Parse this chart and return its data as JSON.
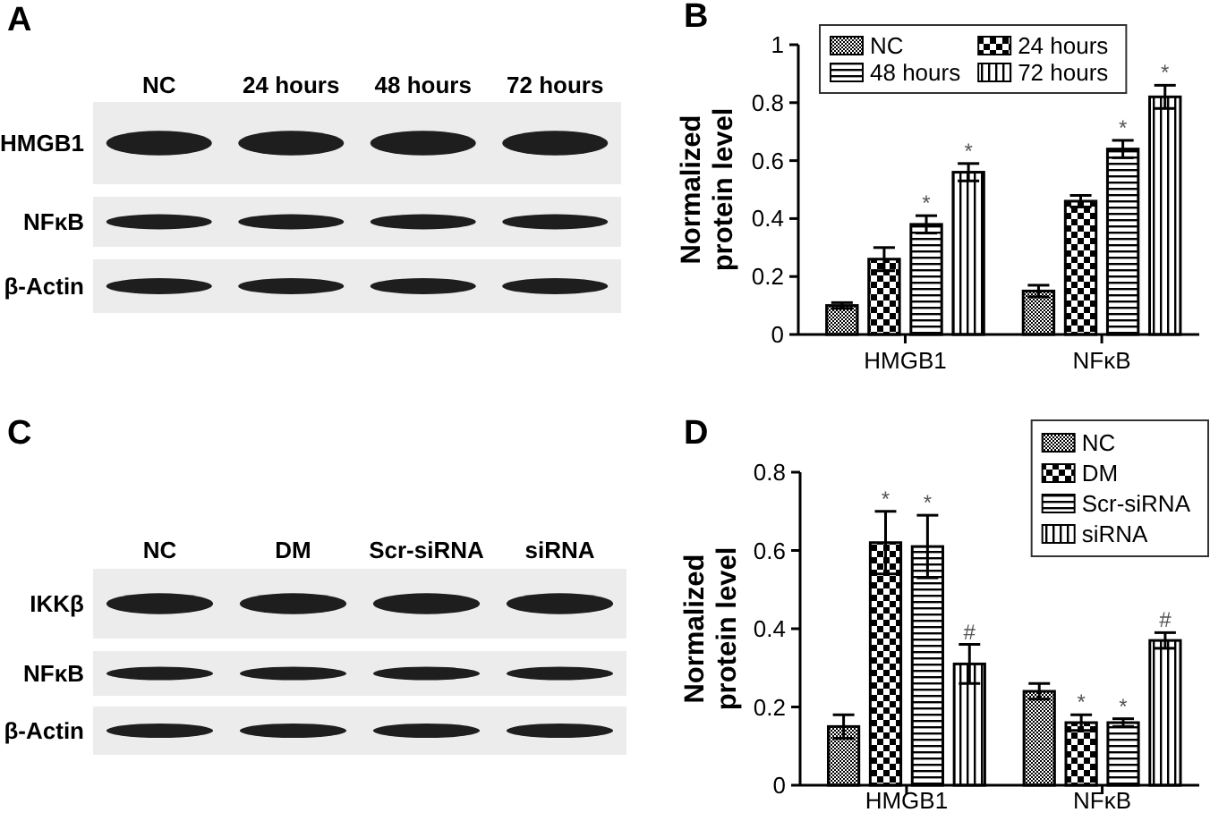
{
  "chart_data": [
    {
      "type": "other",
      "title": "A",
      "categories": [
        "NC",
        "24 hours",
        "48 hours",
        "72 hours"
      ],
      "y_categories": [
        "HMGB1",
        "NFκB",
        "β-Actin"
      ]
    },
    {
      "type": "bar",
      "title": "B",
      "ylabel": "Normalized protein level",
      "categories": [
        "HMGB1",
        "NFκB"
      ],
      "series": [
        {
          "name": "NC",
          "color": "#000000",
          "values": [
            0.1,
            0.15
          ],
          "errors": [
            0.01,
            0.02
          ]
        },
        {
          "name": "24 hours",
          "color": "#000000",
          "values": [
            0.26,
            0.46
          ],
          "errors": [
            0.04,
            0.02
          ]
        },
        {
          "name": "48 hours",
          "color": "#000000",
          "values": [
            0.38,
            0.64
          ],
          "errors": [
            0.03,
            0.03
          ],
          "value_labels": [
            "*",
            "*"
          ]
        },
        {
          "name": "72 hours",
          "color": "#000000",
          "values": [
            0.56,
            0.82
          ],
          "errors": [
            0.03,
            0.04
          ],
          "value_labels": [
            "*",
            "*"
          ]
        }
      ],
      "ylim": [
        0,
        1
      ],
      "yticks": [
        0,
        0.2,
        0.4,
        0.6,
        0.8,
        1
      ],
      "legend": "top left"
    },
    {
      "type": "other",
      "title": "C",
      "categories": [
        "NC",
        "DM",
        "Scr-siRNA",
        "siRNA"
      ],
      "y_categories": [
        "IKKβ",
        "NFκB",
        "β-Actin"
      ]
    },
    {
      "type": "bar",
      "title": "D",
      "ylabel": "Normalized protein level",
      "categories": [
        "HMGB1",
        "NFκB"
      ],
      "series": [
        {
          "name": "NC",
          "color": "#000000",
          "values": [
            0.15,
            0.24
          ],
          "errors": [
            0.03,
            0.02
          ]
        },
        {
          "name": "DM",
          "color": "#000000",
          "values": [
            0.62,
            0.16
          ],
          "errors": [
            0.08,
            0.02
          ],
          "value_labels": [
            "*",
            "*"
          ]
        },
        {
          "name": "Scr-siRNA",
          "color": "#000000",
          "values": [
            0.61,
            0.16
          ],
          "errors": [
            0.08,
            0.01
          ],
          "value_labels": [
            "*",
            "*"
          ]
        },
        {
          "name": "siRNA",
          "color": "#000000",
          "values": [
            0.31,
            0.37
          ],
          "errors": [
            0.05,
            0.02
          ],
          "value_labels": [
            "#",
            "#"
          ]
        }
      ],
      "ylim": [
        0,
        0.8
      ],
      "yticks": [
        0,
        0.2,
        0.4,
        0.6,
        0.8
      ],
      "legend": "top right"
    }
  ]
}
